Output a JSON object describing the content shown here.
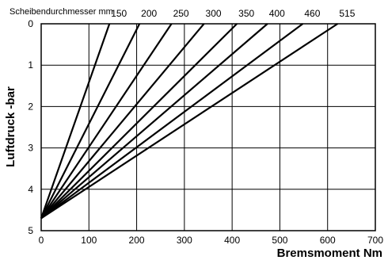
{
  "chart_data": {
    "type": "line",
    "title": "",
    "xlabel": "Bremsmoment Nm",
    "ylabel": "Luftdruck -bar",
    "xlim": [
      0,
      700
    ],
    "ylim": [
      0,
      5
    ],
    "y_inverted": true,
    "grid": true,
    "xticks": [
      "0",
      "100",
      "200",
      "300",
      "400",
      "500",
      "600",
      "700"
    ],
    "yticks": [
      "0",
      "1",
      "2",
      "3",
      "4",
      "5"
    ],
    "series_label_title": "Scheibendurchmesser mm",
    "series": [
      {
        "name": "150",
        "points": [
          [
            0,
            4.7
          ],
          [
            143,
            0
          ]
        ]
      },
      {
        "name": "200",
        "points": [
          [
            0,
            4.7
          ],
          [
            206,
            0
          ]
        ]
      },
      {
        "name": "250",
        "points": [
          [
            0,
            4.7
          ],
          [
            273,
            0
          ]
        ]
      },
      {
        "name": "300",
        "points": [
          [
            0,
            4.7
          ],
          [
            341,
            0
          ]
        ]
      },
      {
        "name": "350",
        "points": [
          [
            0,
            4.7
          ],
          [
            410,
            0
          ]
        ]
      },
      {
        "name": "400",
        "points": [
          [
            0,
            4.7
          ],
          [
            474,
            0
          ]
        ]
      },
      {
        "name": "460",
        "points": [
          [
            0,
            4.7
          ],
          [
            548,
            0
          ]
        ]
      },
      {
        "name": "515",
        "points": [
          [
            0,
            4.7
          ],
          [
            621,
            0
          ]
        ]
      }
    ]
  }
}
